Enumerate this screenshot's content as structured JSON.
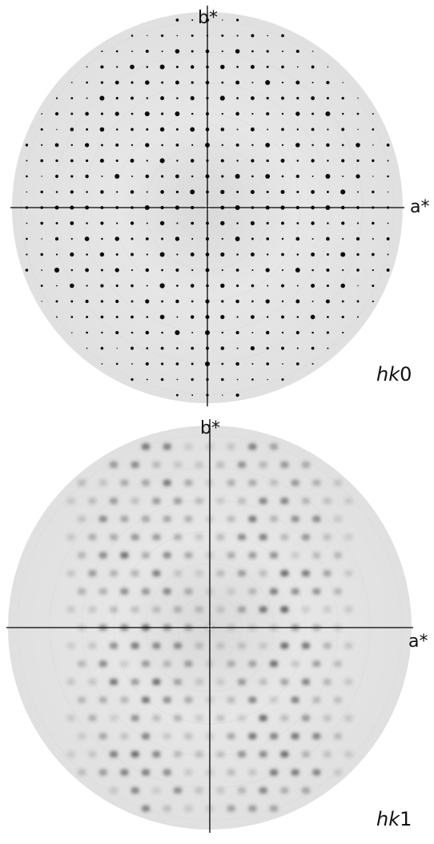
{
  "figure": {
    "panels": [
      {
        "id": "hk0",
        "axis_x_label": "a*",
        "axis_y_label": "b*",
        "layer_label_italic": "hk",
        "layer_label_index": "0",
        "pattern": "sharp-lattice-spots"
      },
      {
        "id": "hk1",
        "axis_x_label": "a*",
        "axis_y_label": "b*",
        "layer_label_italic": "hk",
        "layer_label_index": "1",
        "pattern": "diffuse-streaked-spots"
      }
    ],
    "colors": {
      "background": "#ffffff",
      "detector_disk": "#e4e4e4",
      "spot": "#111111",
      "diffuse": "#3a3a3a",
      "axis_line": "#000000"
    }
  }
}
